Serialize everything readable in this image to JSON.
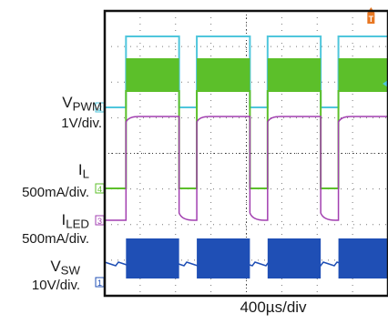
{
  "chart_data": {
    "type": "line",
    "title": "",
    "xlabel": "400µs/div",
    "ylabel": "",
    "channels": [
      {
        "id": "2",
        "name_main": "V",
        "name_sub": "PWM",
        "scale": "1V/div.",
        "color": "#4fc6dc"
      },
      {
        "id": "4",
        "name_main": "I",
        "name_sub": "L",
        "scale": "500mA/div.",
        "color": "#5cbf2a"
      },
      {
        "id": "3",
        "name_main": "I",
        "name_sub": "LED",
        "scale": "500mA/div.",
        "color": "#a23fb0"
      },
      {
        "id": "1",
        "name_main": "V",
        "name_sub": "SW",
        "scale": "10V/div.",
        "color": "#1f4fb5"
      }
    ],
    "horizontal_scale": "400µs/div",
    "divisions": {
      "x": 8,
      "y": 8
    },
    "pulse_on_times_div": [
      [
        0.6,
        2.1
      ],
      [
        2.6,
        4.1
      ],
      [
        4.6,
        6.1
      ],
      [
        6.6,
        8.1
      ]
    ],
    "trigger_marker": "T",
    "trigger_color": "#e87722",
    "grid": true
  }
}
